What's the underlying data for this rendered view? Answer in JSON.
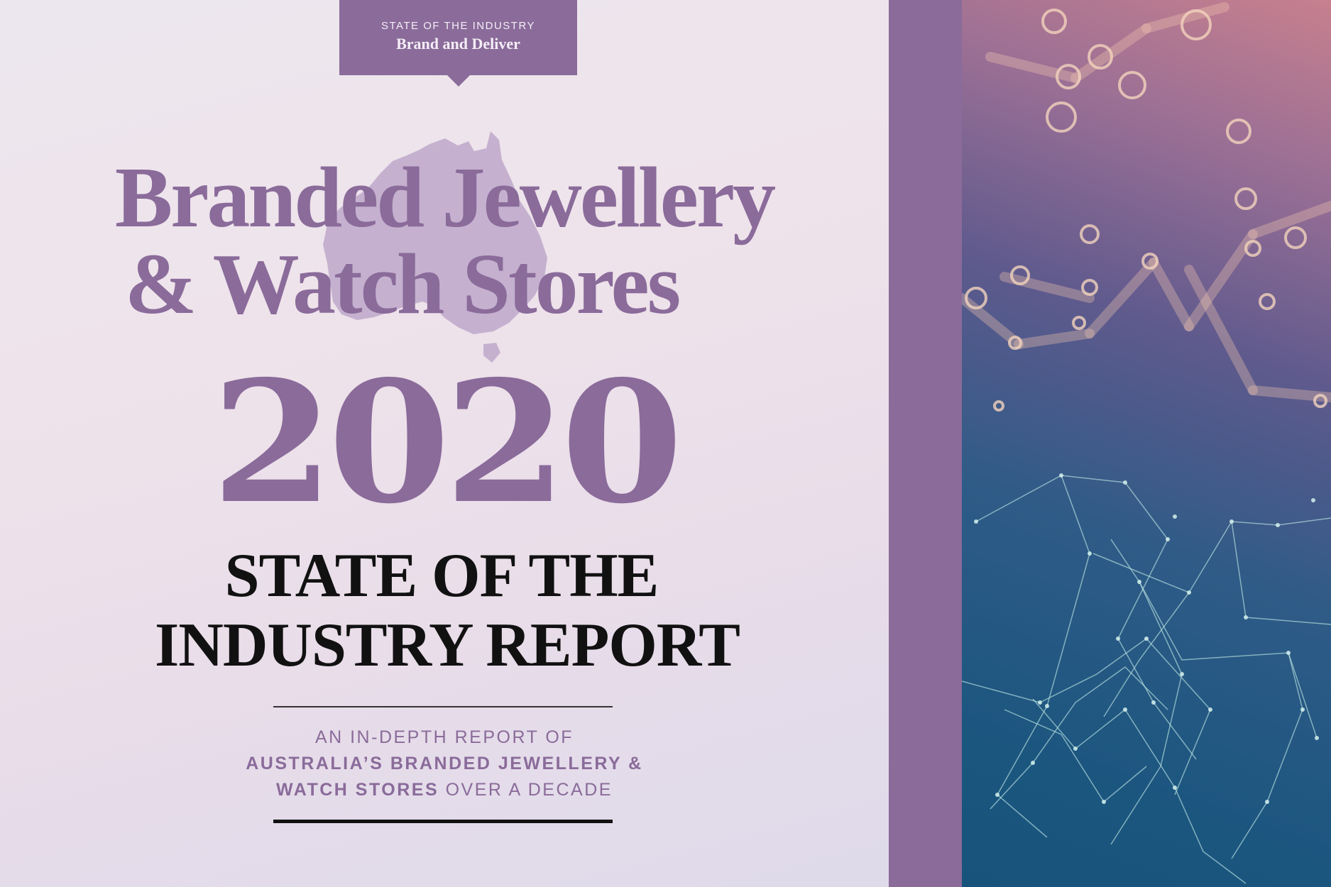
{
  "tag": {
    "kicker": "STATE OF THE INDUSTRY",
    "title": "Brand and Deliver"
  },
  "headline": {
    "line1": "Branded Jewellery",
    "line2": "& Watch Stores"
  },
  "year": "2020",
  "report_title": {
    "line1": "STATE OF THE",
    "line2": "INDUSTRY REPORT"
  },
  "subtitle": {
    "line1": "AN IN-DEPTH REPORT OF",
    "line2_bold": "AUSTRALIA’S BRANDED JEWELLERY &",
    "line3_bold": "WATCH STORES",
    "line3_rest": " OVER A DECADE"
  },
  "colors": {
    "accent_purple": "#8a6b9a",
    "title_black": "#111111",
    "background_tint": "#ece3ec",
    "network_top": "#c7808e",
    "network_bottom": "#17537b"
  },
  "icons": {
    "map": "australia-map-silhouette",
    "network": "network-nodes-graphic"
  }
}
